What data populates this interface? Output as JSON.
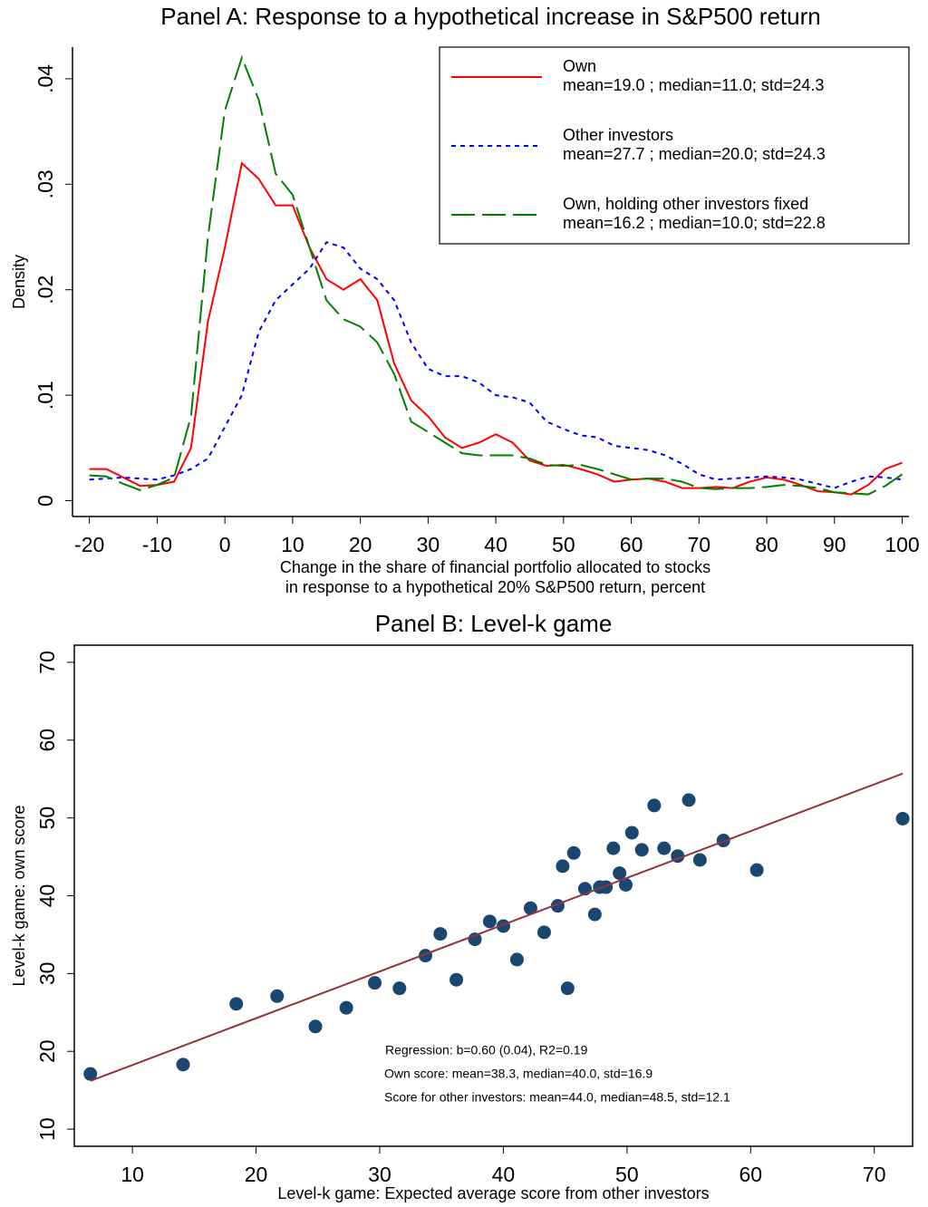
{
  "chart_data": [
    {
      "type": "line",
      "title": "Panel A: Response to a hypothetical increase in S&P500 return",
      "x_label": [
        "Change in the share of financial portfolio allocated to stocks",
        "in response to a hypothetical 20% S&P500 return, percent"
      ],
      "y_label": "Density",
      "legend": "top-right",
      "xlim": [
        -22.5,
        101
      ],
      "ylim": [
        -0.0015,
        0.043
      ],
      "xticks": [
        -20,
        -10,
        0,
        10,
        20,
        30,
        40,
        50,
        60,
        70,
        80,
        90,
        100
      ],
      "yticks": [
        0,
        {
          "value": 0.01,
          "label": ".01"
        },
        {
          "value": 0.02,
          "label": ".02"
        },
        {
          "value": 0.03,
          "label": ".03"
        },
        {
          "value": 0.04,
          "label": ".04"
        }
      ],
      "x": [
        -20,
        -17.5,
        -15,
        -12.5,
        -10,
        -7.5,
        -5,
        -2.5,
        0,
        2.5,
        5,
        7.5,
        10,
        12.5,
        15,
        17.5,
        20,
        22.5,
        25,
        27.5,
        30,
        32.5,
        35,
        37.5,
        40,
        42.5,
        45,
        47.5,
        50,
        52.5,
        55,
        57.5,
        60,
        62.5,
        65,
        67.5,
        70,
        72.5,
        75,
        77.5,
        80,
        82.5,
        85,
        87.5,
        90,
        92.5,
        95,
        97.5,
        100
      ],
      "series": [
        {
          "name": "Own",
          "description": "mean=19.0 ; median=11.0; std=24.3",
          "color": "#ff0000",
          "dash": "solid",
          "values": [
            0.003,
            0.003,
            0.0022,
            0.0014,
            0.0015,
            0.0018,
            0.005,
            0.017,
            0.024,
            0.032,
            0.0305,
            0.028,
            0.028,
            0.024,
            0.021,
            0.02,
            0.021,
            0.019,
            0.013,
            0.0095,
            0.008,
            0.006,
            0.005,
            0.0055,
            0.0063,
            0.0055,
            0.0038,
            0.0033,
            0.0034,
            0.003,
            0.0025,
            0.0018,
            0.002,
            0.0021,
            0.0018,
            0.0012,
            0.0012,
            0.0013,
            0.0012,
            0.0018,
            0.0022,
            0.002,
            0.0015,
            0.0009,
            0.0008,
            0.0006,
            0.0015,
            0.003,
            0.0036
          ]
        },
        {
          "name": "Other investors",
          "description": "mean=27.7 ; median=20.0; std=24.3",
          "color": "#0000ff",
          "dash": "short",
          "values": [
            0.002,
            0.0021,
            0.0022,
            0.0021,
            0.002,
            0.0024,
            0.003,
            0.004,
            0.007,
            0.01,
            0.016,
            0.019,
            0.0205,
            0.022,
            0.0245,
            0.024,
            0.022,
            0.021,
            0.019,
            0.015,
            0.0125,
            0.0118,
            0.0118,
            0.0112,
            0.01,
            0.0098,
            0.0093,
            0.0075,
            0.0068,
            0.0062,
            0.006,
            0.0052,
            0.005,
            0.0048,
            0.0043,
            0.0035,
            0.0025,
            0.002,
            0.0021,
            0.0022,
            0.0023,
            0.0022,
            0.002,
            0.0016,
            0.0012,
            0.0018,
            0.0023,
            0.0022,
            0.002
          ]
        },
        {
          "name": "Own, holding other investors fixed",
          "description": "mean=16.2 ; median=10.0; std=22.8",
          "color": "#008000",
          "dash": "long",
          "values": [
            0.0024,
            0.0023,
            0.0016,
            0.001,
            0.0015,
            0.0022,
            0.008,
            0.025,
            0.037,
            0.042,
            0.038,
            0.031,
            0.029,
            0.024,
            0.019,
            0.0172,
            0.0165,
            0.015,
            0.012,
            0.0075,
            0.0065,
            0.0055,
            0.0045,
            0.0043,
            0.0043,
            0.0043,
            0.004,
            0.0034,
            0.0033,
            0.0034,
            0.003,
            0.0025,
            0.002,
            0.0021,
            0.0021,
            0.0018,
            0.0012,
            0.0011,
            0.0012,
            0.0012,
            0.0013,
            0.0015,
            0.0014,
            0.0012,
            0.0008,
            0.0007,
            0.0006,
            0.0014,
            0.0025
          ]
        }
      ]
    },
    {
      "type": "scatter",
      "title": "Panel B: Level-k game",
      "x_label": [
        "Level-k game: Expected average score from other investors"
      ],
      "y_label": "Level-k game: own score",
      "xlim": [
        5.3,
        73.1
      ],
      "ylim": [
        7.8,
        72.2
      ],
      "xticks": [
        10,
        20,
        30,
        40,
        50,
        60,
        70
      ],
      "yticks": [
        10,
        20,
        30,
        40,
        50,
        60,
        70
      ],
      "color": "#1a476f",
      "x": [
        6.6,
        14.1,
        18.4,
        21.7,
        24.8,
        27.3,
        29.6,
        31.6,
        33.7,
        34.9,
        36.2,
        37.7,
        38.9,
        40.0,
        41.1,
        42.2,
        43.3,
        44.4,
        44.8,
        45.2,
        45.7,
        46.6,
        47.4,
        47.8,
        48.3,
        48.9,
        49.4,
        49.9,
        50.4,
        51.2,
        52.2,
        53.0,
        54.1,
        55.0,
        55.9,
        57.8,
        60.5,
        72.3
      ],
      "values": [
        17.1,
        18.3,
        26.1,
        27.1,
        23.2,
        25.6,
        28.8,
        28.1,
        32.3,
        35.1,
        29.2,
        34.4,
        36.7,
        36.1,
        31.8,
        38.4,
        35.3,
        38.7,
        43.8,
        28.1,
        45.5,
        40.9,
        37.6,
        41.1,
        41.1,
        46.1,
        42.9,
        41.4,
        48.1,
        45.9,
        51.6,
        46.1,
        45.1,
        52.3,
        44.6,
        47.1,
        43.3,
        49.9
      ],
      "fit": {
        "color": "#90353b",
        "x": [
          6.6,
          72.3
        ],
        "values": [
          16.2,
          55.7
        ]
      },
      "annotations": [
        "Regression: b=0.60 (0.04), R2=0.19",
        "Own score: mean=38.3, median=40.0, std=16.9",
        "Score for other investors: mean=44.0, median=48.5, std=12.1"
      ]
    }
  ]
}
